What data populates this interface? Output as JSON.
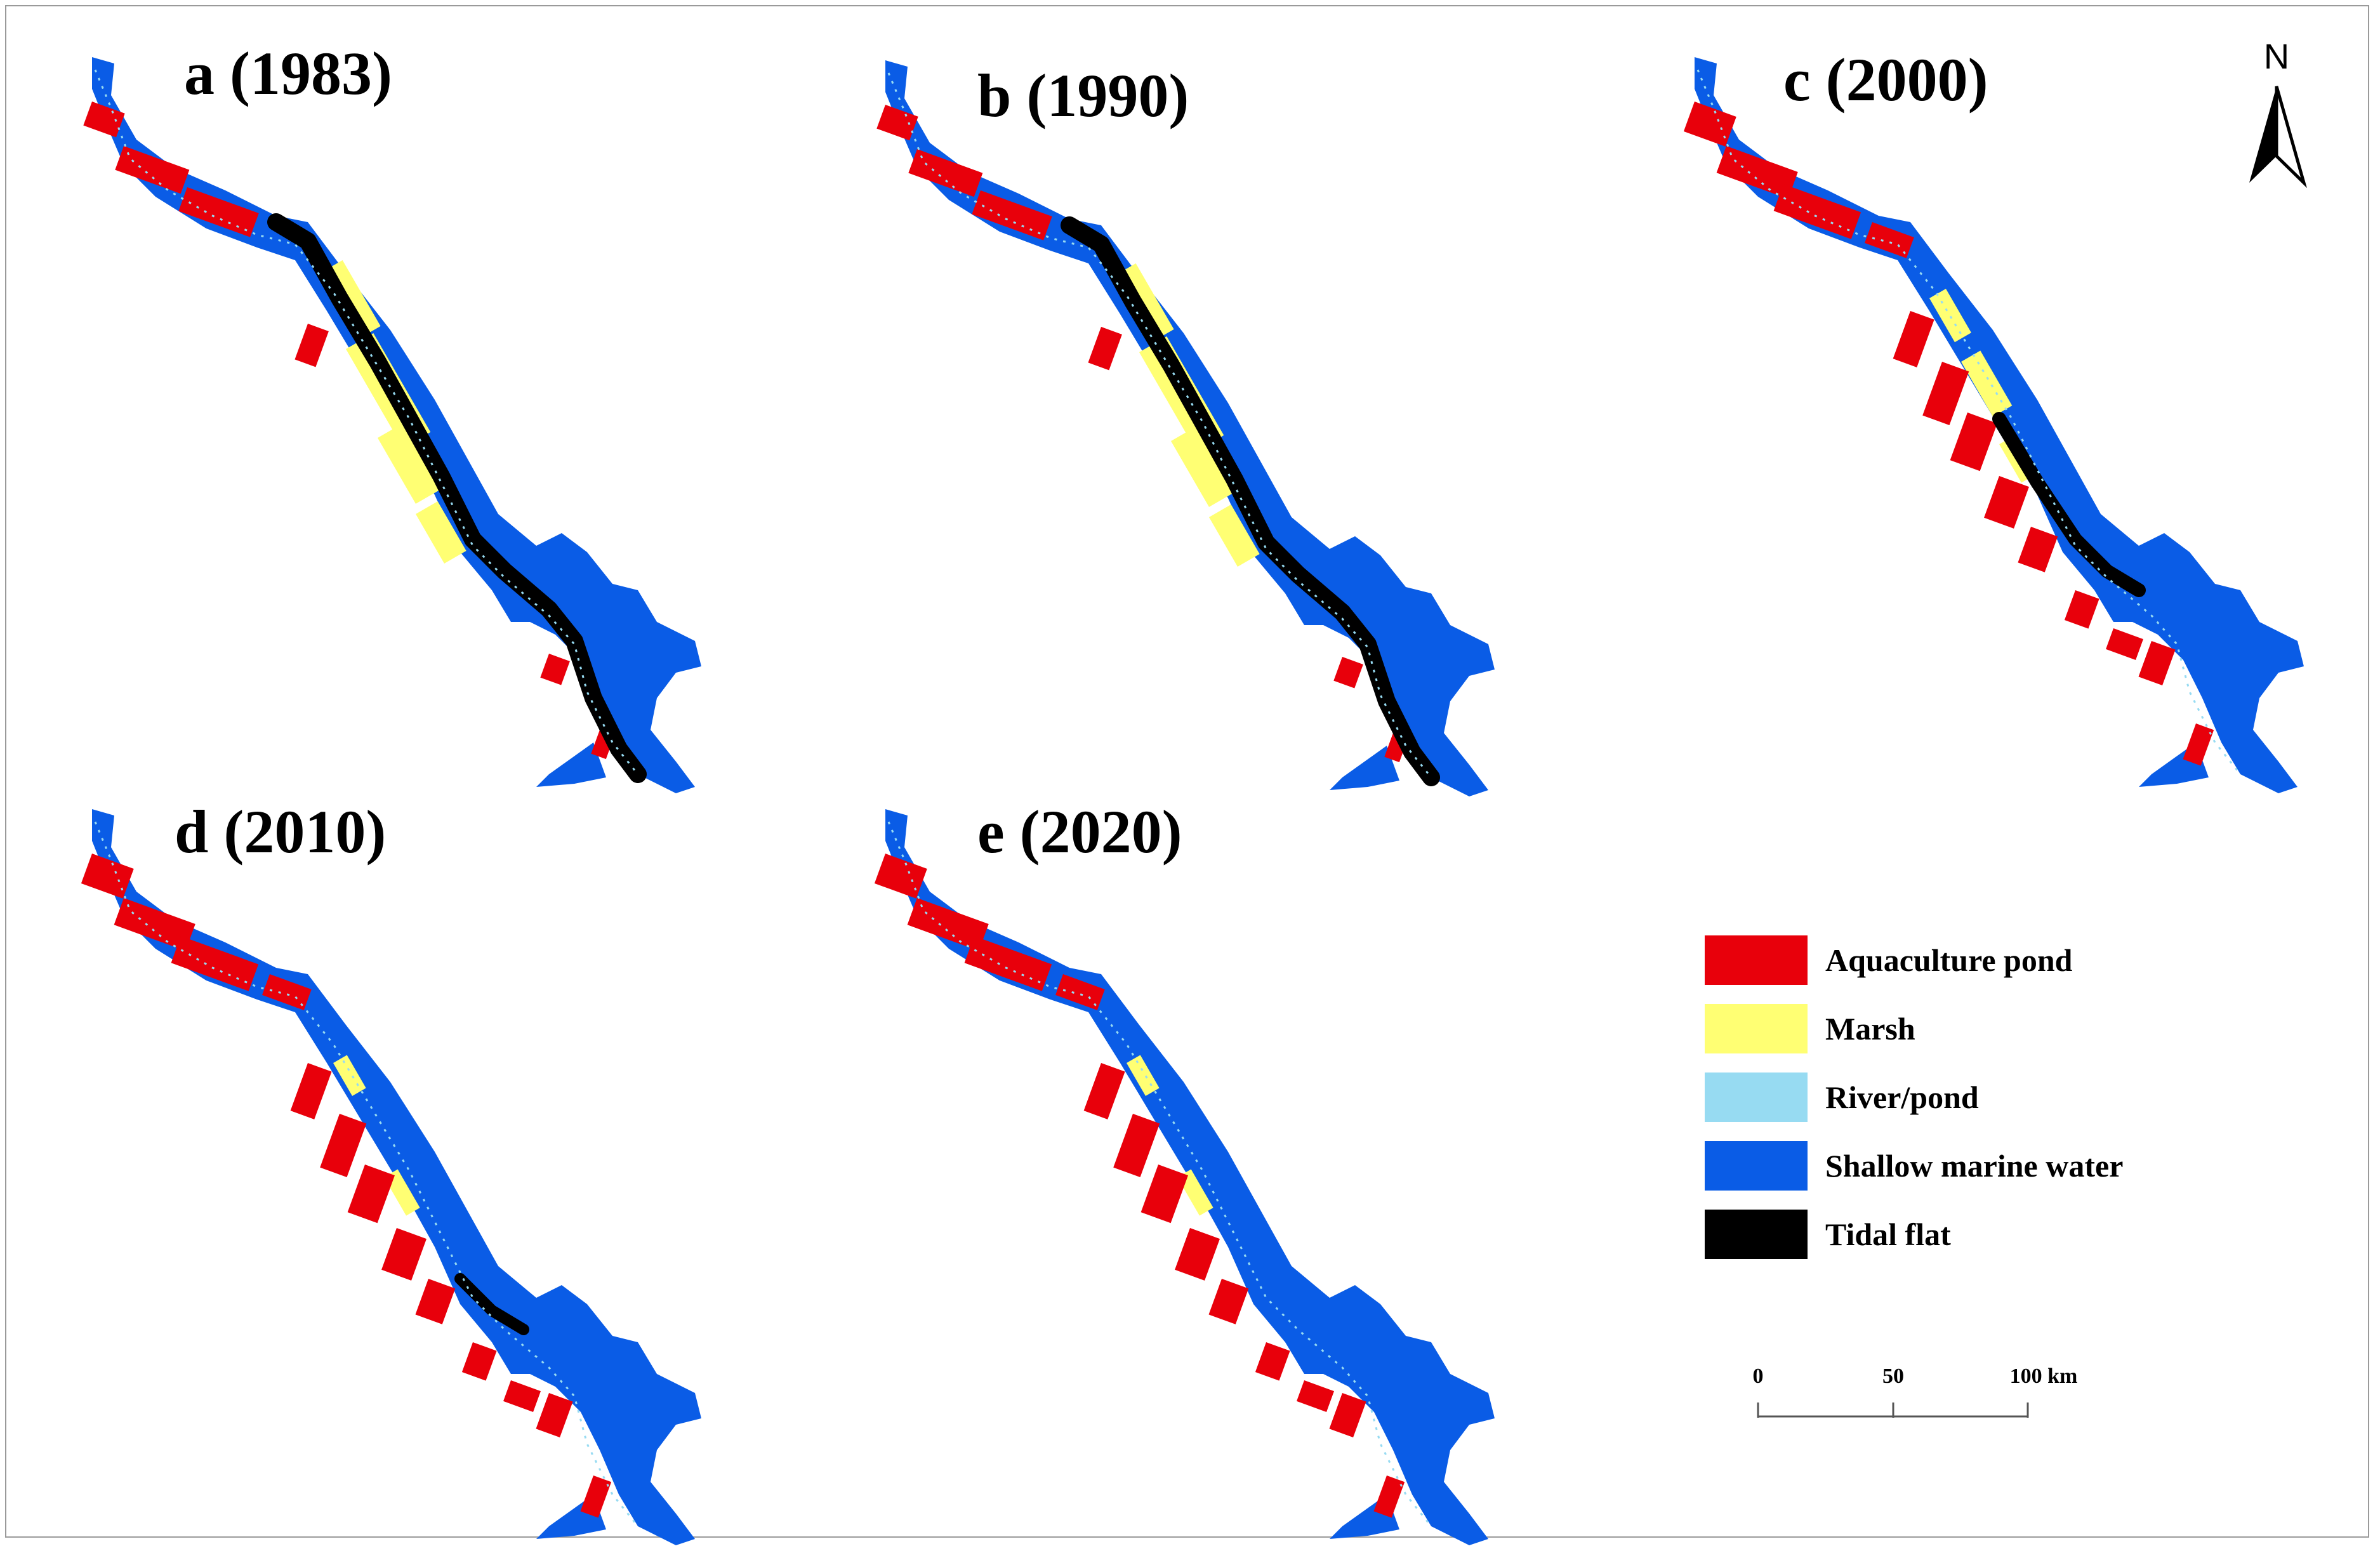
{
  "panels": [
    {
      "label": "a (1983)",
      "tidal": "high",
      "marsh": "high",
      "ponds": "medium"
    },
    {
      "label": "b (1990)",
      "tidal": "high",
      "marsh": "high",
      "ponds": "medium"
    },
    {
      "label": "c (2000)",
      "tidal": "medium",
      "marsh": "medium",
      "ponds": "high"
    },
    {
      "label": "d (2010)",
      "tidal": "low",
      "marsh": "low",
      "ponds": "high"
    },
    {
      "label": "e (2020)",
      "tidal": "none",
      "marsh": "low",
      "ponds": "high"
    }
  ],
  "north_arrow": {
    "label": "N",
    "icon": "north-arrow-icon"
  },
  "legend": {
    "items": [
      {
        "label": "Aquaculture pond",
        "color": "#e8000b"
      },
      {
        "label": "Marsh",
        "color": "#ffff73"
      },
      {
        "label": "River/pond",
        "color": "#97dbf2"
      },
      {
        "label": "Shallow marine water",
        "color": "#0a5ce6"
      },
      {
        "label": "Tidal flat",
        "color": "#000000"
      }
    ]
  },
  "scale_bar": {
    "ticks": [
      "0",
      "50",
      "100 km"
    ]
  }
}
